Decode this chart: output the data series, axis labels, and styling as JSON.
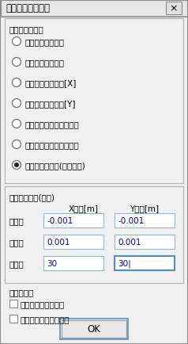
{
  "title": "描画種類：その他",
  "bg_color": "#f0f0f0",
  "dialog_bg": "#f0f0f0",
  "section1_label": "表示種類の選択",
  "radio_options": [
    "最大磁束密度分布",
    "最大磁界強度分布",
    "ヒステリシス分布[X]",
    "ヒステリシス分布[Y]",
    "回転磁束リサージュ分布",
    "回転磁界リサージュ分布",
    "リサージュ分布(ベクトル)"
  ],
  "selected_radio": 6,
  "section2_label": "表示断面指定(格子)",
  "col_x": "X座標[m]",
  "col_y": "Y座標[m]",
  "row_labels": [
    "開始点",
    "分割幅",
    "分割数"
  ],
  "x_values": [
    "-0.001",
    "0.001",
    "30"
  ],
  "y_values": [
    "-0.001",
    "0.001",
    "30|"
  ],
  "options_label": "オプション",
  "checkbox_options": [
    "グラフ出力の正規化",
    "任意点ファイルの使用"
  ],
  "ok_button": "OK",
  "close_x": "×",
  "input_bg": "#ffffff",
  "font_size": 7.5,
  "title_font_size": 8.5
}
